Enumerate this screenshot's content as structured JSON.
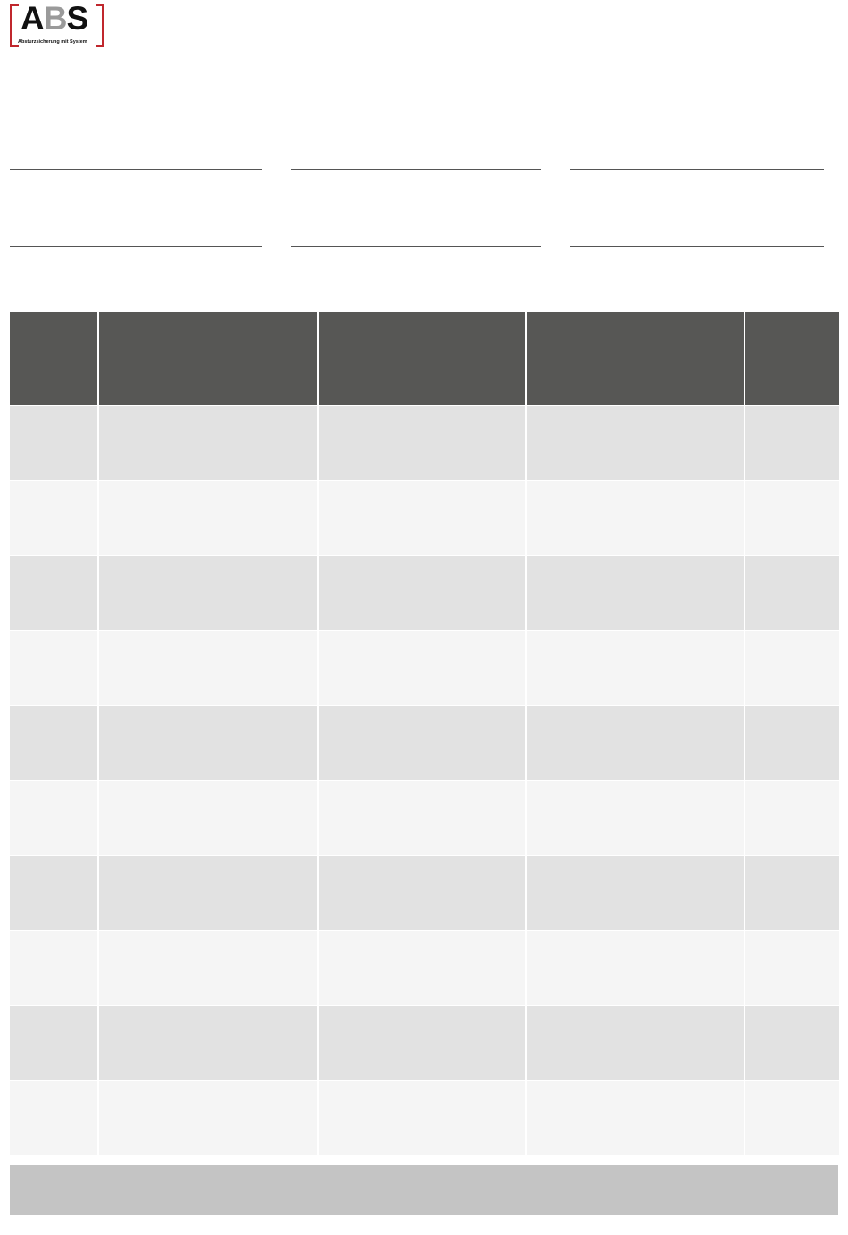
{
  "logo": {
    "text_a": "A",
    "text_b": "B",
    "text_s": "S",
    "tagline": "Absturzsicherung mit System",
    "accent_color": "#c0272d"
  },
  "table": {
    "header": [
      "",
      "",
      "",
      "",
      ""
    ],
    "rows": [
      [
        "",
        "",
        "",
        "",
        ""
      ],
      [
        "",
        "",
        "",
        "",
        ""
      ],
      [
        "",
        "",
        "",
        "",
        ""
      ],
      [
        "",
        "",
        "",
        "",
        ""
      ],
      [
        "",
        "",
        "",
        "",
        ""
      ],
      [
        "",
        "",
        "",
        "",
        ""
      ],
      [
        "",
        "",
        "",
        "",
        ""
      ],
      [
        "",
        "",
        "",
        "",
        ""
      ],
      [
        "",
        "",
        "",
        "",
        ""
      ],
      [
        "",
        "",
        "",
        "",
        ""
      ]
    ],
    "header_color": "#575755",
    "row_colors": [
      "#e2e2e2",
      "#f5f5f5"
    ]
  },
  "footer": {
    "text": ""
  }
}
